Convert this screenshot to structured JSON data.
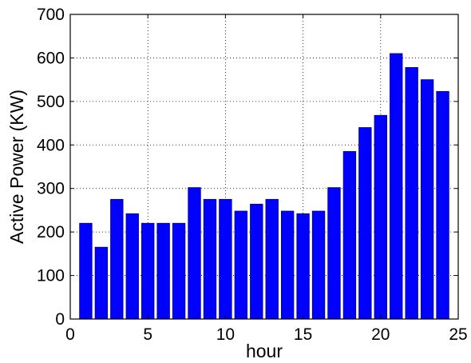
{
  "chart_data": {
    "type": "bar",
    "title": "",
    "xlabel": "hour",
    "ylabel": "Active Power (KW)",
    "x": [
      1,
      2,
      3,
      4,
      5,
      6,
      7,
      8,
      9,
      10,
      11,
      12,
      13,
      14,
      15,
      16,
      17,
      18,
      19,
      20,
      21,
      22,
      23,
      24
    ],
    "values": [
      220,
      165,
      275,
      242,
      220,
      220,
      220,
      302,
      275,
      275,
      248,
      264,
      275,
      248,
      242,
      248,
      302,
      385,
      440,
      468,
      610,
      578,
      550,
      523
    ],
    "xlim": [
      0,
      25
    ],
    "ylim": [
      0,
      700
    ],
    "xticks": [
      0,
      5,
      10,
      15,
      20,
      25
    ],
    "yticks": [
      0,
      100,
      200,
      300,
      400,
      500,
      600,
      700
    ],
    "bar_color": "#0000ff",
    "grid": true
  }
}
